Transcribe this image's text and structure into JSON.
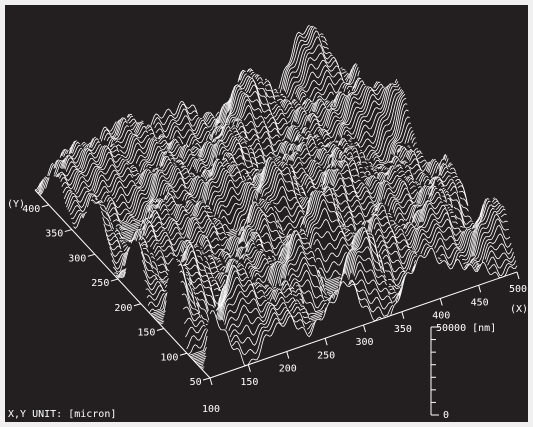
{
  "chart_data": {
    "type": "surface",
    "title": "",
    "x_axis": {
      "label": "(X)",
      "ticks": [
        "100",
        "150",
        "200",
        "250",
        "300",
        "350",
        "400",
        "450",
        "500"
      ],
      "range": [
        100,
        500
      ]
    },
    "y_axis": {
      "label": "(Y)",
      "ticks": [
        "50",
        "100",
        "150",
        "200",
        "250",
        "300",
        "350",
        "400"
      ],
      "range": [
        50,
        430
      ]
    },
    "z_axis": {
      "label": "50000 [nm]",
      "ticks": [
        "0"
      ],
      "range": [
        0,
        50000
      ],
      "unit": "nm"
    },
    "unit_note": "X,Y UNIT: [micron]",
    "style": {
      "background": "#231f20",
      "line_color": "#ffffff"
    }
  }
}
